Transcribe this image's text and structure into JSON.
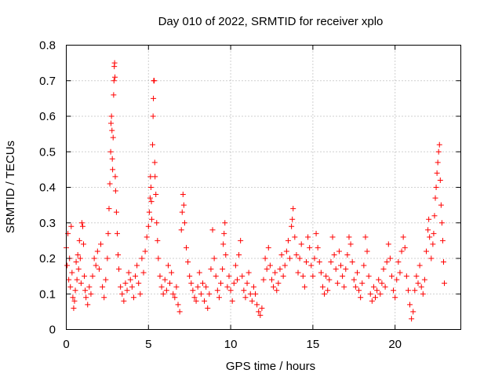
{
  "chart_data": {
    "type": "scatter",
    "title": "Day 010 of 2022, SRMTID for receiver xplo",
    "xlabel": "GPS time / hours",
    "ylabel": "SRMTID / TECUs",
    "xlim": [
      0,
      24
    ],
    "ylim": [
      0,
      0.8
    ],
    "xticks": [
      0,
      5,
      10,
      15,
      20
    ],
    "yticks": [
      0,
      0.1,
      0.2,
      0.3,
      0.4,
      0.5,
      0.6,
      0.7,
      0.8
    ],
    "xtick_labels": [
      "0",
      "5",
      "10",
      "15",
      "20"
    ],
    "ytick_labels": [
      "0",
      "0.1",
      "0.2",
      "0.3",
      "0.4",
      "0.5",
      "0.6",
      "0.7",
      "0.8"
    ],
    "grid": true,
    "marker": "+",
    "color": "#ff0000",
    "series": [
      {
        "name": "SRMTID",
        "points": [
          [
            0.0,
            0.23
          ],
          [
            0.05,
            0.18
          ],
          [
            0.1,
            0.27
          ],
          [
            0.15,
            0.14
          ],
          [
            0.2,
            0.2
          ],
          [
            0.25,
            0.12
          ],
          [
            0.3,
            0.29
          ],
          [
            0.35,
            0.16
          ],
          [
            0.4,
            0.09
          ],
          [
            0.45,
            0.06
          ],
          [
            0.5,
            0.08
          ],
          [
            0.55,
            0.11
          ],
          [
            0.6,
            0.19
          ],
          [
            0.65,
            0.14
          ],
          [
            0.7,
            0.21
          ],
          [
            0.75,
            0.17
          ],
          [
            0.8,
            0.25
          ],
          [
            0.85,
            0.2
          ],
          [
            0.9,
            0.13
          ],
          [
            0.95,
            0.3
          ],
          [
            1.0,
            0.29
          ],
          [
            1.05,
            0.24
          ],
          [
            1.1,
            0.15
          ],
          [
            1.15,
            0.11
          ],
          [
            1.2,
            0.09
          ],
          [
            1.3,
            0.07
          ],
          [
            1.4,
            0.12
          ],
          [
            1.5,
            0.1
          ],
          [
            1.6,
            0.15
          ],
          [
            1.7,
            0.2
          ],
          [
            1.8,
            0.18
          ],
          [
            1.9,
            0.22
          ],
          [
            2.0,
            0.17
          ],
          [
            2.1,
            0.24
          ],
          [
            2.2,
            0.12
          ],
          [
            2.3,
            0.09
          ],
          [
            2.4,
            0.14
          ],
          [
            2.5,
            0.2
          ],
          [
            2.55,
            0.27
          ],
          [
            2.6,
            0.34
          ],
          [
            2.65,
            0.41
          ],
          [
            2.7,
            0.5
          ],
          [
            2.72,
            0.58
          ],
          [
            2.75,
            0.6
          ],
          [
            2.78,
            0.56
          ],
          [
            2.8,
            0.48
          ],
          [
            2.82,
            0.45
          ],
          [
            2.85,
            0.54
          ],
          [
            2.88,
            0.66
          ],
          [
            2.9,
            0.7
          ],
          [
            2.92,
            0.74
          ],
          [
            2.94,
            0.75
          ],
          [
            2.96,
            0.71
          ],
          [
            2.98,
            0.43
          ],
          [
            3.0,
            0.39
          ],
          [
            3.05,
            0.33
          ],
          [
            3.1,
            0.27
          ],
          [
            3.15,
            0.21
          ],
          [
            3.2,
            0.17
          ],
          [
            3.3,
            0.12
          ],
          [
            3.4,
            0.1
          ],
          [
            3.5,
            0.08
          ],
          [
            3.6,
            0.13
          ],
          [
            3.7,
            0.11
          ],
          [
            3.8,
            0.16
          ],
          [
            3.9,
            0.14
          ],
          [
            4.0,
            0.12
          ],
          [
            4.1,
            0.09
          ],
          [
            4.2,
            0.15
          ],
          [
            4.3,
            0.18
          ],
          [
            4.4,
            0.13
          ],
          [
            4.5,
            0.1
          ],
          [
            4.6,
            0.2
          ],
          [
            4.7,
            0.16
          ],
          [
            4.8,
            0.22
          ],
          [
            4.9,
            0.26
          ],
          [
            5.0,
            0.29
          ],
          [
            5.05,
            0.33
          ],
          [
            5.1,
            0.37
          ],
          [
            5.12,
            0.43
          ],
          [
            5.15,
            0.4
          ],
          [
            5.18,
            0.36
          ],
          [
            5.2,
            0.31
          ],
          [
            5.25,
            0.52
          ],
          [
            5.28,
            0.6
          ],
          [
            5.3,
            0.65
          ],
          [
            5.32,
            0.7
          ],
          [
            5.35,
            0.7
          ],
          [
            5.38,
            0.47
          ],
          [
            5.4,
            0.43
          ],
          [
            5.45,
            0.38
          ],
          [
            5.5,
            0.3
          ],
          [
            5.55,
            0.25
          ],
          [
            5.6,
            0.2
          ],
          [
            5.7,
            0.15
          ],
          [
            5.8,
            0.12
          ],
          [
            5.9,
            0.1
          ],
          [
            6.0,
            0.14
          ],
          [
            6.1,
            0.11
          ],
          [
            6.2,
            0.18
          ],
          [
            6.3,
            0.13
          ],
          [
            6.4,
            0.16
          ],
          [
            6.5,
            0.1
          ],
          [
            6.6,
            0.09
          ],
          [
            6.7,
            0.12
          ],
          [
            6.8,
            0.07
          ],
          [
            6.9,
            0.05
          ],
          [
            7.0,
            0.28
          ],
          [
            7.05,
            0.33
          ],
          [
            7.1,
            0.38
          ],
          [
            7.15,
            0.35
          ],
          [
            7.2,
            0.3
          ],
          [
            7.3,
            0.23
          ],
          [
            7.4,
            0.19
          ],
          [
            7.5,
            0.15
          ],
          [
            7.6,
            0.13
          ],
          [
            7.7,
            0.11
          ],
          [
            7.8,
            0.09
          ],
          [
            7.9,
            0.08
          ],
          [
            8.0,
            0.12
          ],
          [
            8.1,
            0.16
          ],
          [
            8.2,
            0.1
          ],
          [
            8.3,
            0.13
          ],
          [
            8.4,
            0.08
          ],
          [
            8.5,
            0.12
          ],
          [
            8.6,
            0.06
          ],
          [
            8.7,
            0.1
          ],
          [
            8.8,
            0.17
          ],
          [
            8.9,
            0.28
          ],
          [
            9.0,
            0.2
          ],
          [
            9.1,
            0.15
          ],
          [
            9.2,
            0.11
          ],
          [
            9.3,
            0.09
          ],
          [
            9.4,
            0.13
          ],
          [
            9.5,
            0.17
          ],
          [
            9.55,
            0.24
          ],
          [
            9.6,
            0.27
          ],
          [
            9.65,
            0.3
          ],
          [
            9.7,
            0.21
          ],
          [
            9.8,
            0.12
          ],
          [
            9.9,
            0.15
          ],
          [
            10.0,
            0.11
          ],
          [
            10.1,
            0.08
          ],
          [
            10.2,
            0.13
          ],
          [
            10.3,
            0.18
          ],
          [
            10.4,
            0.14
          ],
          [
            10.5,
            0.21
          ],
          [
            10.6,
            0.25
          ],
          [
            10.7,
            0.15
          ],
          [
            10.8,
            0.11
          ],
          [
            10.9,
            0.09
          ],
          [
            11.0,
            0.13
          ],
          [
            11.1,
            0.16
          ],
          [
            11.2,
            0.1
          ],
          [
            11.3,
            0.08
          ],
          [
            11.4,
            0.12
          ],
          [
            11.5,
            0.1
          ],
          [
            11.6,
            0.07
          ],
          [
            11.7,
            0.05
          ],
          [
            11.8,
            0.04
          ],
          [
            11.9,
            0.06
          ],
          [
            12.0,
            0.14
          ],
          [
            12.1,
            0.2
          ],
          [
            12.2,
            0.17
          ],
          [
            12.3,
            0.23
          ],
          [
            12.4,
            0.18
          ],
          [
            12.5,
            0.14
          ],
          [
            12.6,
            0.12
          ],
          [
            12.7,
            0.16
          ],
          [
            12.8,
            0.11
          ],
          [
            12.9,
            0.13
          ],
          [
            13.0,
            0.17
          ],
          [
            13.1,
            0.21
          ],
          [
            13.2,
            0.15
          ],
          [
            13.3,
            0.18
          ],
          [
            13.4,
            0.22
          ],
          [
            13.5,
            0.25
          ],
          [
            13.6,
            0.2
          ],
          [
            13.7,
            0.29
          ],
          [
            13.75,
            0.31
          ],
          [
            13.8,
            0.34
          ],
          [
            13.9,
            0.26
          ],
          [
            14.0,
            0.21
          ],
          [
            14.1,
            0.16
          ],
          [
            14.2,
            0.2
          ],
          [
            14.3,
            0.24
          ],
          [
            14.4,
            0.15
          ],
          [
            14.5,
            0.12
          ],
          [
            14.6,
            0.19
          ],
          [
            14.7,
            0.26
          ],
          [
            14.8,
            0.23
          ],
          [
            14.9,
            0.18
          ],
          [
            15.0,
            0.15
          ],
          [
            15.1,
            0.2
          ],
          [
            15.2,
            0.27
          ],
          [
            15.3,
            0.23
          ],
          [
            15.4,
            0.19
          ],
          [
            15.5,
            0.16
          ],
          [
            15.6,
            0.12
          ],
          [
            15.7,
            0.1
          ],
          [
            15.8,
            0.15
          ],
          [
            15.9,
            0.11
          ],
          [
            16.0,
            0.14
          ],
          [
            16.1,
            0.19
          ],
          [
            16.2,
            0.26
          ],
          [
            16.3,
            0.21
          ],
          [
            16.4,
            0.17
          ],
          [
            16.5,
            0.13
          ],
          [
            16.6,
            0.22
          ],
          [
            16.7,
            0.18
          ],
          [
            16.8,
            0.15
          ],
          [
            16.9,
            0.12
          ],
          [
            17.0,
            0.17
          ],
          [
            17.1,
            0.21
          ],
          [
            17.2,
            0.26
          ],
          [
            17.3,
            0.24
          ],
          [
            17.4,
            0.19
          ],
          [
            17.5,
            0.14
          ],
          [
            17.6,
            0.12
          ],
          [
            17.7,
            0.16
          ],
          [
            17.8,
            0.11
          ],
          [
            17.9,
            0.09
          ],
          [
            18.0,
            0.13
          ],
          [
            18.1,
            0.18
          ],
          [
            18.2,
            0.26
          ],
          [
            18.3,
            0.22
          ],
          [
            18.4,
            0.15
          ],
          [
            18.5,
            0.1
          ],
          [
            18.6,
            0.08
          ],
          [
            18.7,
            0.12
          ],
          [
            18.8,
            0.09
          ],
          [
            18.9,
            0.11
          ],
          [
            19.0,
            0.14
          ],
          [
            19.1,
            0.1
          ],
          [
            19.2,
            0.13
          ],
          [
            19.3,
            0.17
          ],
          [
            19.4,
            0.12
          ],
          [
            19.5,
            0.19
          ],
          [
            19.6,
            0.24
          ],
          [
            19.7,
            0.2
          ],
          [
            19.8,
            0.15
          ],
          [
            19.9,
            0.11
          ],
          [
            20.0,
            0.09
          ],
          [
            20.1,
            0.14
          ],
          [
            20.2,
            0.19
          ],
          [
            20.3,
            0.16
          ],
          [
            20.4,
            0.22
          ],
          [
            20.5,
            0.26
          ],
          [
            20.6,
            0.23
          ],
          [
            20.7,
            0.15
          ],
          [
            20.8,
            0.11
          ],
          [
            20.9,
            0.07
          ],
          [
            21.0,
            0.03
          ],
          [
            21.1,
            0.05
          ],
          [
            21.2,
            0.11
          ],
          [
            21.3,
            0.15
          ],
          [
            21.4,
            0.13
          ],
          [
            21.5,
            0.18
          ],
          [
            21.6,
            0.12
          ],
          [
            21.7,
            0.1
          ],
          [
            21.8,
            0.14
          ],
          [
            21.9,
            0.22
          ],
          [
            22.0,
            0.28
          ],
          [
            22.05,
            0.31
          ],
          [
            22.1,
            0.26
          ],
          [
            22.2,
            0.2
          ],
          [
            22.3,
            0.24
          ],
          [
            22.35,
            0.27
          ],
          [
            22.4,
            0.32
          ],
          [
            22.45,
            0.37
          ],
          [
            22.5,
            0.4
          ],
          [
            22.55,
            0.44
          ],
          [
            22.6,
            0.47
          ],
          [
            22.65,
            0.5
          ],
          [
            22.7,
            0.52
          ],
          [
            22.75,
            0.42
          ],
          [
            22.8,
            0.35
          ],
          [
            22.85,
            0.3
          ],
          [
            22.9,
            0.25
          ],
          [
            22.95,
            0.19
          ],
          [
            23.0,
            0.13
          ]
        ]
      }
    ]
  }
}
